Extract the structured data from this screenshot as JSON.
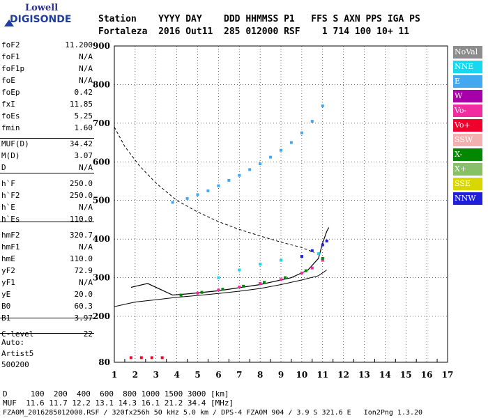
{
  "logo": {
    "line1": "Lowell",
    "line2": "DIGISONDE"
  },
  "header": {
    "row1": "Station    YYYY DAY    DDD HHMMSS P1   FFS S AXN PPS IGA PS",
    "row2": "Fortaleza  2016 Out11  285 012000 RSF    1 714 100 10+ 11"
  },
  "params": {
    "group1": [
      {
        "label": "foF2",
        "value": "11.200"
      },
      {
        "label": "foF1",
        "value": "N/A"
      },
      {
        "label": "foF1p",
        "value": "N/A"
      },
      {
        "label": "foE",
        "value": "N/A"
      },
      {
        "label": "foEp",
        "value": "0.42"
      },
      {
        "label": "fxI",
        "value": "11.85"
      },
      {
        "label": "foEs",
        "value": "5.25"
      },
      {
        "label": "fmin",
        "value": "1.60"
      }
    ],
    "group2": [
      {
        "label": "MUF(D)",
        "value": "34.42"
      },
      {
        "label": "M(D)",
        "value": "3.07"
      },
      {
        "label": "D",
        "value": "N/A"
      }
    ],
    "group3": [
      {
        "label": "h`F",
        "value": "250.0"
      },
      {
        "label": "h`F2",
        "value": "250.0"
      },
      {
        "label": "h`E",
        "value": "N/A"
      },
      {
        "label": "h`Es",
        "value": "110.0"
      }
    ],
    "group4": [
      {
        "label": "hmF2",
        "value": "320.7"
      },
      {
        "label": "hmF1",
        "value": "N/A"
      },
      {
        "label": "hmE",
        "value": "110.0"
      },
      {
        "label": "yF2",
        "value": "72.9"
      },
      {
        "label": "yF1",
        "value": "N/A"
      },
      {
        "label": "yE",
        "value": "20.0"
      },
      {
        "label": "B0",
        "value": "60.3"
      },
      {
        "label": "B1",
        "value": "3.97"
      }
    ],
    "group5": [
      {
        "label": "C-level",
        "value": "22"
      }
    ]
  },
  "auto": {
    "line1": "Auto:",
    "line2": "Artist5",
    "line3": "500200"
  },
  "legend": [
    {
      "label": "NoVal",
      "color": "#8c8c8c"
    },
    {
      "label": "NNE",
      "color": "#18d8f0"
    },
    {
      "label": "E",
      "color": "#44a8f0"
    },
    {
      "label": "W",
      "color": "#a800a8"
    },
    {
      "label": "Vo-",
      "color": "#f02ca0"
    },
    {
      "label": "Vo+",
      "color": "#f0002c"
    },
    {
      "label": "SSW",
      "color": "#f4b0b0"
    },
    {
      "label": "X-",
      "color": "#008800"
    },
    {
      "label": "X+",
      "color": "#88c068"
    },
    {
      "label": "SSE",
      "color": "#d8d800"
    },
    {
      "label": "NNW",
      "color": "#2020d8"
    }
  ],
  "footer": {
    "row1": "D     100  200  400  600  800 1000 1500 3000 [km]",
    "row2": "MUF  11.6 11.7 12.2 13.1 14.3 16.1 21.2 34.4 [MHz]",
    "row3": "FZA0M_2016285012000.RSF / 320fx256h 50 kHz 5.0 km / DPS-4 FZA0M 904 / 3.9 S 321.6 E   Ion2Png 1.3.20"
  },
  "chart_data": {
    "type": "scatter",
    "xlim": [
      1,
      17
    ],
    "ylim": [
      80,
      900
    ],
    "x_ticks": [
      1,
      2,
      3,
      4,
      5,
      6,
      7,
      8,
      9,
      10,
      11,
      12,
      13,
      14,
      15,
      16,
      17
    ],
    "y_ticks": [
      80,
      200,
      300,
      400,
      500,
      600,
      700,
      800,
      900
    ],
    "grid": true,
    "series": [
      {
        "name": "E",
        "color": "#44a8f0",
        "x": [
          3.8,
          4.5,
          5.0,
          5.5,
          6.0,
          6.5,
          7.0,
          7.5,
          8.0,
          8.5,
          9.0,
          9.5,
          10.0,
          10.5,
          11.0
        ],
        "y": [
          495,
          505,
          515,
          525,
          538,
          552,
          565,
          580,
          595,
          612,
          630,
          650,
          675,
          705,
          745
        ]
      },
      {
        "name": "Vo-",
        "color": "#f02ca0",
        "x": [
          5.0,
          6.0,
          7.0,
          8.0,
          9.0,
          10.0,
          10.5,
          11.0
        ],
        "y": [
          260,
          268,
          276,
          285,
          295,
          312,
          325,
          345
        ]
      },
      {
        "name": "Vo+",
        "color": "#f0002c",
        "x": [
          1.8,
          2.3,
          2.8,
          3.3
        ],
        "y": [
          92,
          92,
          92,
          92
        ]
      },
      {
        "name": "X-",
        "color": "#008800",
        "x": [
          4.2,
          5.2,
          6.2,
          7.2,
          8.2,
          9.2,
          10.2,
          11.0
        ],
        "y": [
          255,
          262,
          270,
          278,
          288,
          300,
          318,
          350
        ]
      },
      {
        "name": "NNE",
        "color": "#18d8f0",
        "x": [
          6.0,
          7.0,
          8.0,
          9.0,
          10.0,
          10.8
        ],
        "y": [
          300,
          320,
          335,
          345,
          355,
          362
        ]
      },
      {
        "name": "NNW",
        "color": "#2020d8",
        "x": [
          10.0,
          10.5,
          11.0,
          11.2
        ],
        "y": [
          355,
          370,
          385,
          395
        ]
      }
    ]
  }
}
